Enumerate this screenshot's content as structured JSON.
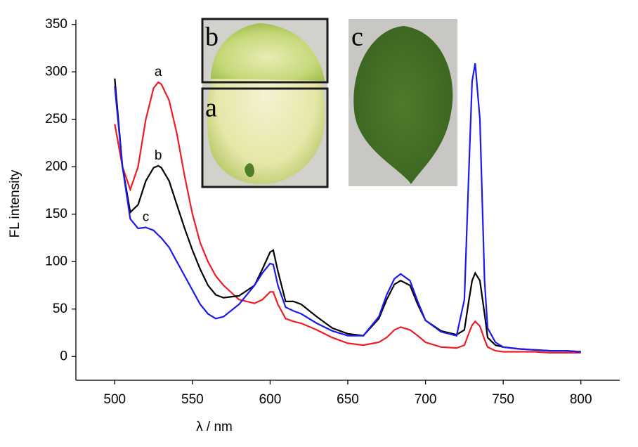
{
  "chart_data": {
    "type": "line",
    "x_label": "λ / nm",
    "y_label": "FL intensity",
    "xlim": [
      475,
      825
    ],
    "ylim": [
      -25,
      355
    ],
    "xticks": [
      500,
      550,
      600,
      650,
      700,
      750,
      800
    ],
    "yticks": [
      0,
      50,
      100,
      150,
      200,
      250,
      300,
      350
    ],
    "x": [
      500,
      505,
      510,
      515,
      520,
      525,
      528,
      530,
      535,
      540,
      545,
      550,
      555,
      560,
      565,
      570,
      580,
      590,
      595,
      600,
      602,
      605,
      610,
      615,
      620,
      630,
      640,
      650,
      660,
      670,
      675,
      680,
      684,
      690,
      695,
      700,
      710,
      720,
      725,
      728,
      730,
      732,
      735,
      738,
      740,
      745,
      750,
      760,
      770,
      780,
      790,
      800
    ],
    "series": [
      {
        "name": "a",
        "color": "#ee1c25",
        "values": [
          245,
          200,
          176,
          200,
          250,
          283,
          289,
          287,
          270,
          235,
          190,
          150,
          120,
          100,
          85,
          75,
          60,
          56,
          60,
          68,
          68,
          55,
          40,
          37,
          35,
          28,
          20,
          14,
          12,
          15,
          20,
          28,
          31,
          28,
          22,
          15,
          10,
          9,
          12,
          25,
          33,
          37,
          32,
          18,
          10,
          6,
          5,
          5,
          5,
          4,
          4,
          4
        ]
      },
      {
        "name": "b",
        "color": "#000000",
        "values": [
          293,
          200,
          152,
          160,
          185,
          199,
          201,
          199,
          185,
          160,
          135,
          112,
          92,
          75,
          65,
          62,
          64,
          75,
          92,
          110,
          112,
          90,
          58,
          58,
          55,
          42,
          30,
          24,
          22,
          40,
          60,
          76,
          80,
          75,
          55,
          38,
          27,
          23,
          28,
          60,
          80,
          88,
          80,
          45,
          20,
          12,
          10,
          8,
          7,
          6,
          6,
          5
        ]
      },
      {
        "name": "c",
        "color": "#1a1aee",
        "values": [
          285,
          200,
          145,
          135,
          136,
          133,
          128,
          125,
          115,
          100,
          85,
          70,
          55,
          45,
          40,
          42,
          55,
          75,
          88,
          98,
          97,
          75,
          52,
          48,
          45,
          35,
          27,
          22,
          22,
          42,
          65,
          82,
          87,
          80,
          58,
          38,
          26,
          22,
          60,
          200,
          290,
          309,
          250,
          80,
          30,
          15,
          10,
          8,
          7,
          6,
          6,
          5
        ]
      }
    ],
    "insets": [
      {
        "label": "b"
      },
      {
        "label": "a"
      },
      {
        "label": "c"
      }
    ]
  }
}
